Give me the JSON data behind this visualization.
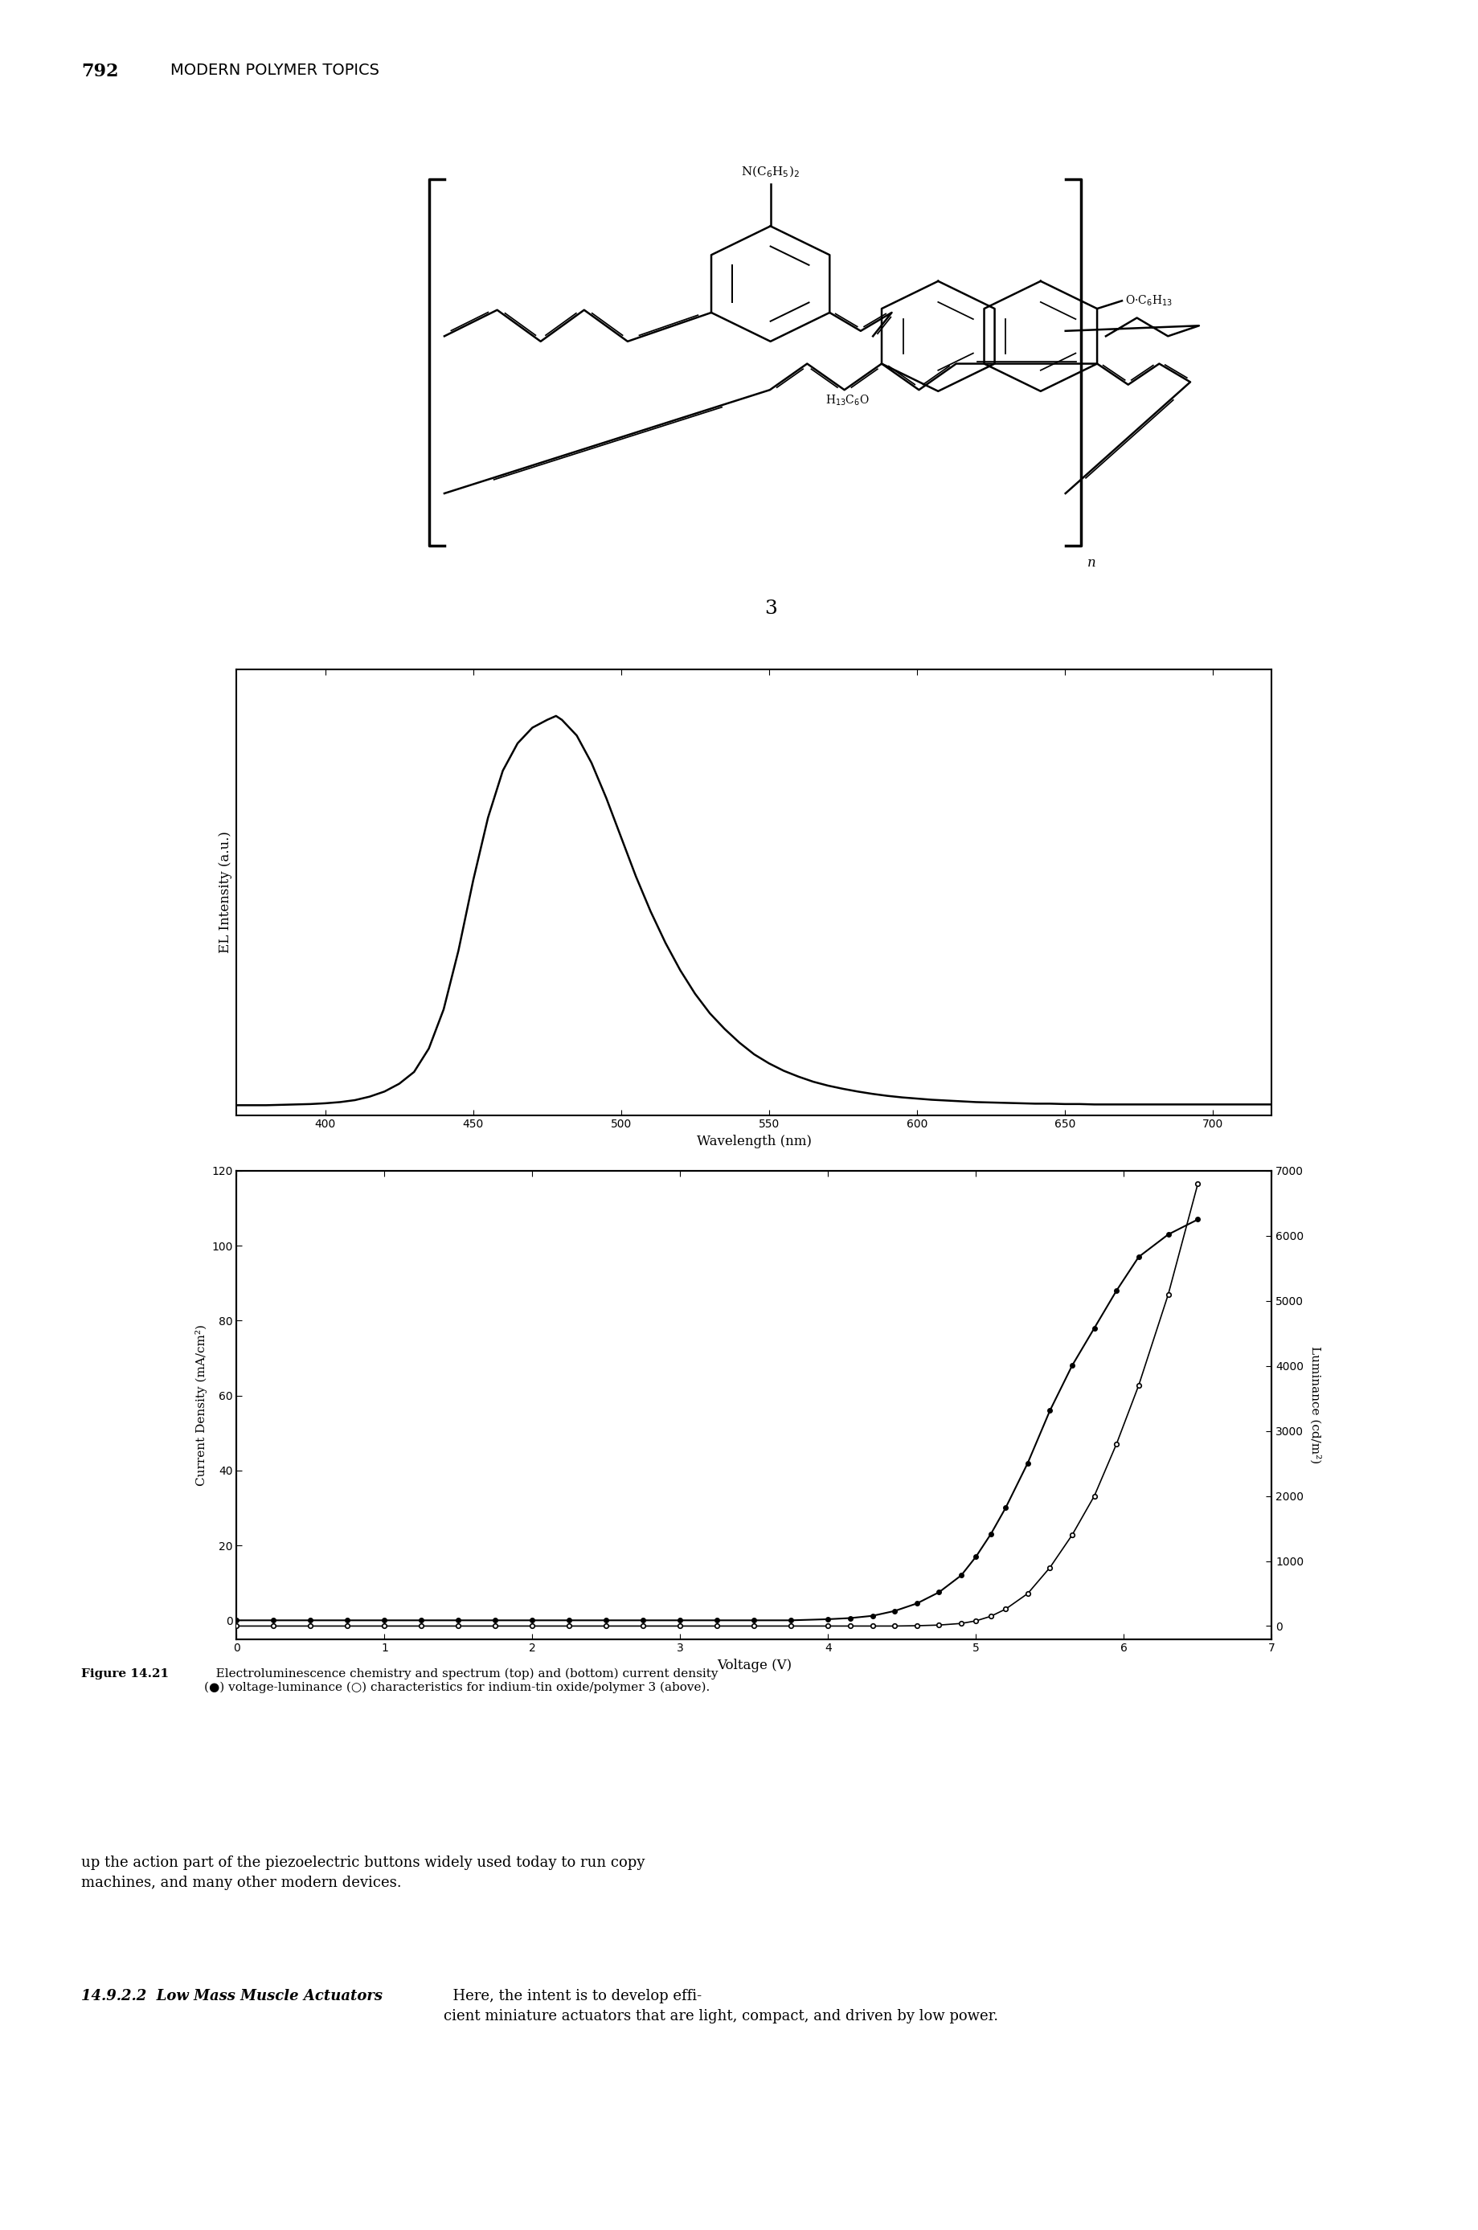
{
  "page_header_num": "792",
  "page_header_text": "MODERN POLYMER TOPICS",
  "el_spectrum": {
    "xlabel": "Wavelength (nm)",
    "ylabel": "EL Intensity (a.u.)",
    "xlim": [
      370,
      720
    ],
    "xticks": [
      400,
      450,
      500,
      550,
      600,
      650,
      700
    ],
    "wavelengths": [
      370,
      375,
      380,
      385,
      390,
      395,
      400,
      405,
      410,
      415,
      420,
      425,
      430,
      435,
      440,
      445,
      450,
      455,
      460,
      465,
      470,
      475,
      478,
      480,
      485,
      490,
      495,
      500,
      505,
      510,
      515,
      520,
      525,
      530,
      535,
      540,
      545,
      550,
      555,
      560,
      565,
      570,
      575,
      580,
      585,
      590,
      595,
      600,
      605,
      610,
      615,
      620,
      625,
      630,
      635,
      640,
      645,
      650,
      655,
      660,
      665,
      670,
      675,
      680,
      685,
      690,
      695,
      700,
      705,
      710,
      715,
      720
    ],
    "intensities": [
      0.005,
      0.005,
      0.005,
      0.006,
      0.007,
      0.008,
      0.01,
      0.013,
      0.018,
      0.027,
      0.04,
      0.06,
      0.09,
      0.15,
      0.25,
      0.4,
      0.58,
      0.74,
      0.86,
      0.93,
      0.97,
      0.99,
      1.0,
      0.99,
      0.95,
      0.88,
      0.79,
      0.69,
      0.59,
      0.5,
      0.42,
      0.35,
      0.29,
      0.24,
      0.2,
      0.165,
      0.135,
      0.112,
      0.093,
      0.078,
      0.065,
      0.055,
      0.047,
      0.04,
      0.034,
      0.029,
      0.025,
      0.022,
      0.019,
      0.017,
      0.015,
      0.013,
      0.012,
      0.011,
      0.01,
      0.009,
      0.009,
      0.008,
      0.008,
      0.007,
      0.007,
      0.007,
      0.007,
      0.007,
      0.007,
      0.007,
      0.007,
      0.007,
      0.007,
      0.007,
      0.007,
      0.007
    ]
  },
  "jvl_plot": {
    "xlabel": "Voltage (V)",
    "ylabel_left": "Current Density (mA/cm²)",
    "ylabel_right": "Luminance (cd/m²)",
    "xlim": [
      0,
      7
    ],
    "ylim_left": [
      -5,
      120
    ],
    "ylim_right": [
      -200,
      7000
    ],
    "yticks_left": [
      0,
      20,
      40,
      60,
      80,
      100,
      120
    ],
    "yticks_right": [
      0,
      1000,
      2000,
      3000,
      4000,
      5000,
      6000,
      7000
    ],
    "xticks": [
      0,
      1,
      2,
      3,
      4,
      5,
      6,
      7
    ],
    "voltage_J": [
      0.0,
      0.25,
      0.5,
      0.75,
      1.0,
      1.25,
      1.5,
      1.75,
      2.0,
      2.25,
      2.5,
      2.75,
      3.0,
      3.25,
      3.5,
      3.75,
      4.0,
      4.15,
      4.3,
      4.45,
      4.6,
      4.75,
      4.9,
      5.0,
      5.1,
      5.2,
      5.35,
      5.5,
      5.65,
      5.8,
      5.95,
      6.1,
      6.3,
      6.5
    ],
    "current_density": [
      0.0,
      0.0,
      0.0,
      0.0,
      0.0,
      0.0,
      0.0,
      0.0,
      0.0,
      0.0,
      0.0,
      0.0,
      0.0,
      0.0,
      0.0,
      0.0,
      0.3,
      0.6,
      1.2,
      2.5,
      4.5,
      7.5,
      12.0,
      17.0,
      23.0,
      30.0,
      42.0,
      56.0,
      68.0,
      78.0,
      88.0,
      97.0,
      103.0,
      107.0
    ],
    "voltage_L": [
      0.0,
      0.25,
      0.5,
      0.75,
      1.0,
      1.25,
      1.5,
      1.75,
      2.0,
      2.25,
      2.5,
      2.75,
      3.0,
      3.25,
      3.5,
      3.75,
      4.0,
      4.15,
      4.3,
      4.45,
      4.6,
      4.75,
      4.9,
      5.0,
      5.1,
      5.2,
      5.35,
      5.5,
      5.65,
      5.8,
      5.95,
      6.1,
      6.3,
      6.5
    ],
    "luminance": [
      0.0,
      0.0,
      0.0,
      0.0,
      0.0,
      0.0,
      0.0,
      0.0,
      0.0,
      0.0,
      0.0,
      0.0,
      0.0,
      0.0,
      0.0,
      0.0,
      0.0,
      0.0,
      0.0,
      0.0,
      5.0,
      15.0,
      40.0,
      80.0,
      150.0,
      260.0,
      500.0,
      900.0,
      1400.0,
      2000.0,
      2800.0,
      3700.0,
      5100.0,
      6800.0
    ]
  },
  "caption_bold": "Figure 14.21",
  "caption_normal": "   Electroluminescence chemistry and spectrum (top) and (bottom) current density\n(●) voltage-luminance (○) characteristics for indium-tin oxide/polymer 3 (above).",
  "bottom_text_1": "up the action part of the piezoelectric buttons widely used today to run copy\nmachines, and many other modern devices.",
  "bottom_text_2_bold": "14.9.2.2  Low Mass Muscle Actuators",
  "bottom_text_2_normal": "  Here, the intent is to develop effi-\ncient miniature actuators that are light, compact, and driven by low power.",
  "bg_color": "#ffffff"
}
